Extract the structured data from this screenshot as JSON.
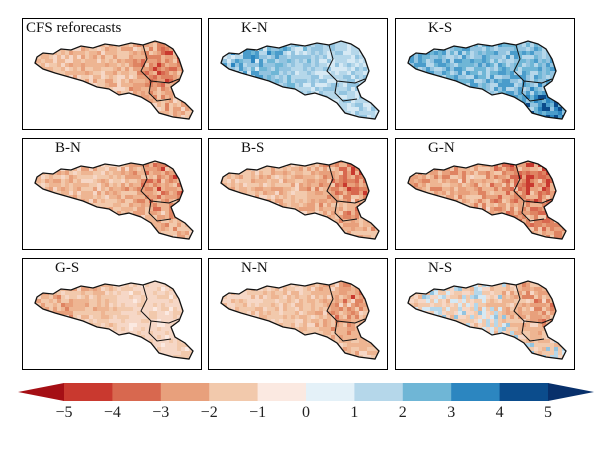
{
  "panels": [
    {
      "label": "CFS reforecasts",
      "palette": "warm",
      "intensity": 0.55,
      "hotspot": "east",
      "label_align": "left"
    },
    {
      "label": "K-N",
      "palette": "cool",
      "intensity": 0.45,
      "hotspot": "west",
      "label_align": "center"
    },
    {
      "label": "K-S",
      "palette": "cool",
      "intensity": 0.75,
      "hotspot": "southeast",
      "label_align": "center"
    },
    {
      "label": "B-N",
      "palette": "warm",
      "intensity": 0.55,
      "hotspot": "east",
      "label_align": "center"
    },
    {
      "label": "B-S",
      "palette": "warm",
      "intensity": 0.55,
      "hotspot": "east",
      "label_align": "center"
    },
    {
      "label": "G-N",
      "palette": "warm",
      "intensity": 0.7,
      "hotspot": "east",
      "label_align": "center"
    },
    {
      "label": "G-S",
      "palette": "warm",
      "intensity": 0.3,
      "hotspot": "west",
      "label_align": "center"
    },
    {
      "label": "N-N",
      "palette": "warm",
      "intensity": 0.45,
      "hotspot": "east",
      "label_align": "center"
    },
    {
      "label": "N-S",
      "palette": "mixed",
      "intensity": 0.4,
      "hotspot": "east",
      "label_align": "center"
    }
  ],
  "colorbar": {
    "ticks": [
      "−5",
      "−4",
      "−3",
      "−2",
      "−1",
      "0",
      "1",
      "2",
      "3",
      "4",
      "5"
    ],
    "colors": [
      "#a50f15",
      "#c9392f",
      "#d8684f",
      "#e8a07c",
      "#f2c9ac",
      "#fbe9e1",
      "#e4f1f8",
      "#b5d7ea",
      "#6fb6d6",
      "#2c86c0",
      "#0b4c8c",
      "#08306b"
    ]
  }
}
